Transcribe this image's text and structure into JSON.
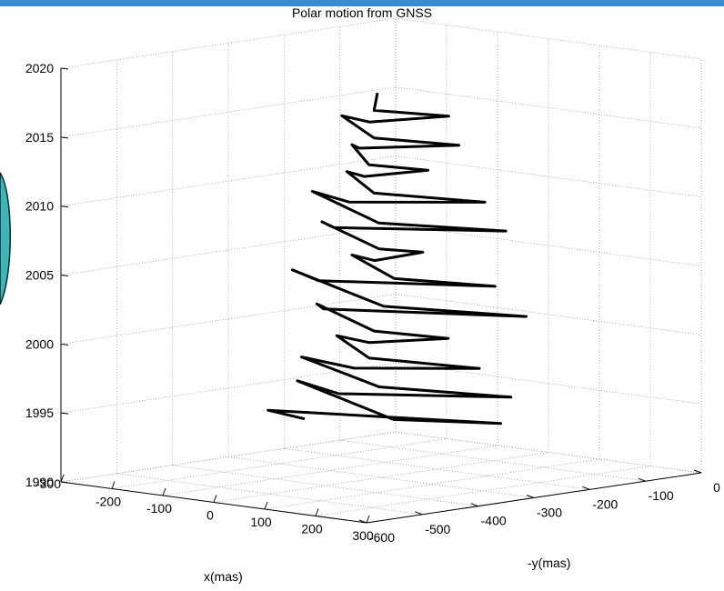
{
  "chart_data": {
    "type": "line",
    "title": "Polar motion from GNSS",
    "xlabel": "x(mas)",
    "ylabel": "-y(mas)",
    "zlabel": "",
    "xlim": [
      -300,
      300
    ],
    "ylim": [
      -600,
      0
    ],
    "zlim": [
      1990,
      2020
    ],
    "x_ticks": [
      "-300",
      "-200",
      "-100",
      "0",
      "100",
      "200",
      "300"
    ],
    "y_ticks": [
      "-600",
      "-500",
      "-400",
      "-300",
      "-200",
      "-100",
      "0"
    ],
    "z_ticks": [
      "1990",
      "1995",
      "2000",
      "2005",
      "2010",
      "2015",
      "2020"
    ],
    "grid": true,
    "line_color": "#000000",
    "series": [
      {
        "description_points": "t in years, x in mas, -y in mas",
        "t": [
          1993.5,
          1994,
          1994.5,
          1995,
          1995.5,
          1996,
          1996.5,
          1997,
          1997.5,
          1998,
          1998.5,
          1999,
          1999.5,
          2000,
          2000.5,
          2001,
          2001.5,
          2002,
          2002.5,
          2003,
          2003.5,
          2004,
          2004.5,
          2005,
          2005.5,
          2006,
          2006.5,
          2007,
          2007.5,
          2008,
          2008.5,
          2009,
          2009.5,
          2010,
          2010.5,
          2011,
          2011.5,
          2012,
          2012.5,
          2013,
          2013.5,
          2014,
          2014.5,
          2015,
          2015.5,
          2016,
          2016.5,
          2017,
          2017.5
        ],
        "x": [
          -150,
          -200,
          180,
          90,
          -230,
          -50,
          200,
          40,
          -200,
          -20,
          160,
          20,
          -120,
          10,
          110,
          30,
          -170,
          -80,
          230,
          60,
          -240,
          -90,
          180,
          70,
          -90,
          20,
          60,
          40,
          -160,
          -60,
          190,
          50,
          -190,
          -30,
          160,
          30,
          -100,
          0,
          70,
          20,
          -90,
          -10,
          120,
          30,
          -110,
          10,
          100,
          30,
          -40
        ],
        "y": [
          -300,
          -320,
          -250,
          -360,
          -240,
          -330,
          -250,
          -340,
          -260,
          -330,
          -270,
          -340,
          -270,
          -330,
          -280,
          -340,
          -260,
          -330,
          -250,
          -350,
          -240,
          -330,
          -260,
          -340,
          -270,
          -330,
          -280,
          -340,
          -260,
          -330,
          -250,
          -350,
          -250,
          -330,
          -260,
          -340,
          -270,
          -330,
          -280,
          -340,
          -270,
          -330,
          -270,
          -340,
          -270,
          -330,
          -270,
          -340,
          -270
        ]
      }
    ]
  }
}
